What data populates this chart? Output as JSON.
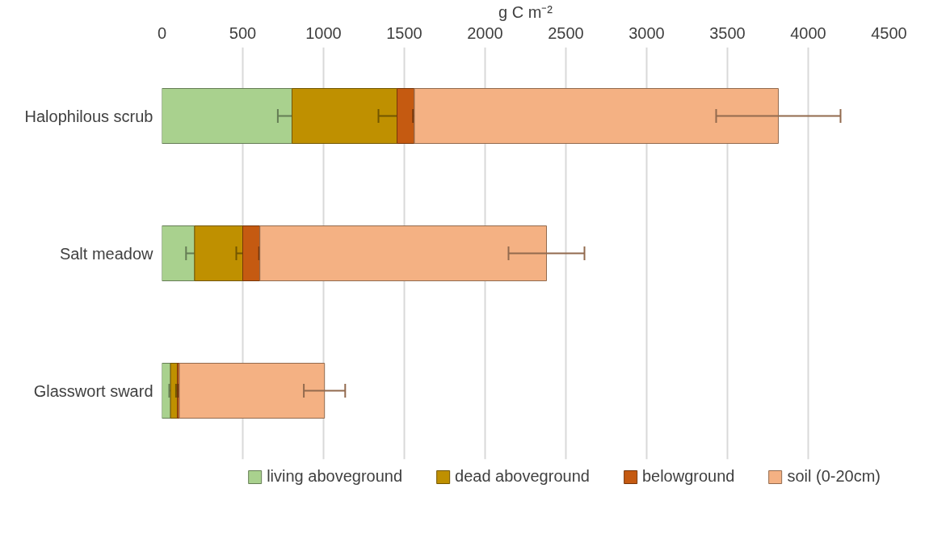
{
  "chart_data": {
    "type": "bar",
    "orientation": "horizontal",
    "stacked": true,
    "xlabel": "g C m⁻²",
    "categories": [
      "Halophilous scrub",
      "Salt meadow",
      "Glasswort sward"
    ],
    "series": [
      {
        "name": "living aboveground",
        "color": "#a9d18e",
        "values": [
          805,
          202,
          53
        ],
        "errors": [
          88,
          53,
          8
        ]
      },
      {
        "name": "dead aboveground",
        "color": "#bf9000",
        "values": [
          650,
          298,
          42
        ],
        "errors": [
          115,
          40,
          8
        ]
      },
      {
        "name": "belowground",
        "color": "#c55a11",
        "values": [
          107,
          106,
          12
        ],
        "errors": [
          8,
          5,
          5
        ]
      },
      {
        "name": "soil (0-20cm)",
        "color": "#f4b183",
        "values": [
          2253,
          1774,
          899
        ],
        "errors": [
          385,
          235,
          128
        ]
      }
    ],
    "xlim": [
      0,
      4500
    ],
    "xticks": [
      0,
      500,
      1000,
      1500,
      2000,
      2500,
      3000,
      3500,
      4000,
      4500
    ],
    "grid": "x",
    "legend": "bottom"
  }
}
